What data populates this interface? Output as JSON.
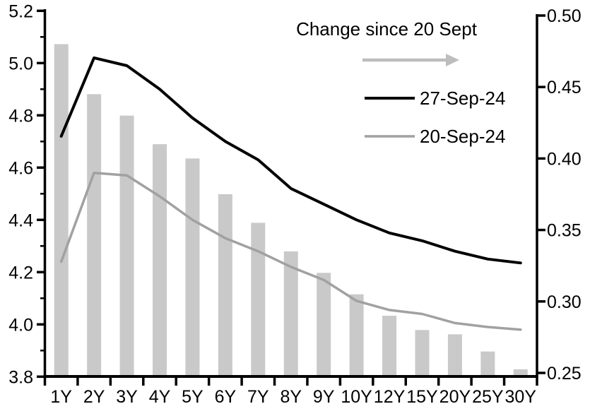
{
  "chart_data": {
    "type": "bar+line",
    "categories": [
      "1Y",
      "2Y",
      "3Y",
      "4Y",
      "5Y",
      "6Y",
      "7Y",
      "8Y",
      "9Y",
      "10Y",
      "12Y",
      "15Y",
      "20Y",
      "25Y",
      "30Y"
    ],
    "series": [
      {
        "name": "Change since 20 Sept",
        "type": "bar",
        "axis": "right",
        "color": "#c9c9c9",
        "values": [
          0.48,
          0.445,
          0.43,
          0.41,
          0.4,
          0.375,
          0.355,
          0.335,
          0.32,
          0.305,
          0.29,
          0.28,
          0.277,
          0.265,
          0.2525
        ]
      },
      {
        "name": "27-Sep-24",
        "type": "line",
        "axis": "left",
        "color": "#000000",
        "values": [
          4.72,
          5.02,
          4.99,
          4.9,
          4.79,
          4.7,
          4.63,
          4.52,
          4.46,
          4.4,
          4.35,
          4.32,
          4.28,
          4.25,
          4.235
        ]
      },
      {
        "name": "20-Sep-24",
        "type": "line",
        "axis": "left",
        "color": "#a1a1a1",
        "values": [
          4.24,
          4.58,
          4.57,
          4.49,
          4.4,
          4.33,
          4.28,
          4.22,
          4.17,
          4.09,
          4.055,
          4.04,
          4.005,
          3.99,
          3.98
        ]
      }
    ],
    "left_axis": {
      "min": 3.8,
      "max": 5.2,
      "major_step": 0.2,
      "minor_step": 0.1,
      "tick_labels": [
        "5.2",
        "5.0",
        "4.8",
        "4.6",
        "4.4",
        "4.2",
        "4.0",
        "3.8"
      ]
    },
    "right_axis": {
      "min": 0.25,
      "max": 0.5,
      "major_step": 0.05,
      "tick_labels": [
        "0.50",
        "0.45",
        "0.40",
        "0.35",
        "0.30",
        "0.25"
      ]
    },
    "grid": false,
    "legend_position": "top-center-inside",
    "legend": {
      "title": "Change since 20 Sept",
      "arrow_color": "#bdbdbd",
      "entries": [
        "27-Sep-24",
        "20-Sep-24"
      ]
    }
  }
}
